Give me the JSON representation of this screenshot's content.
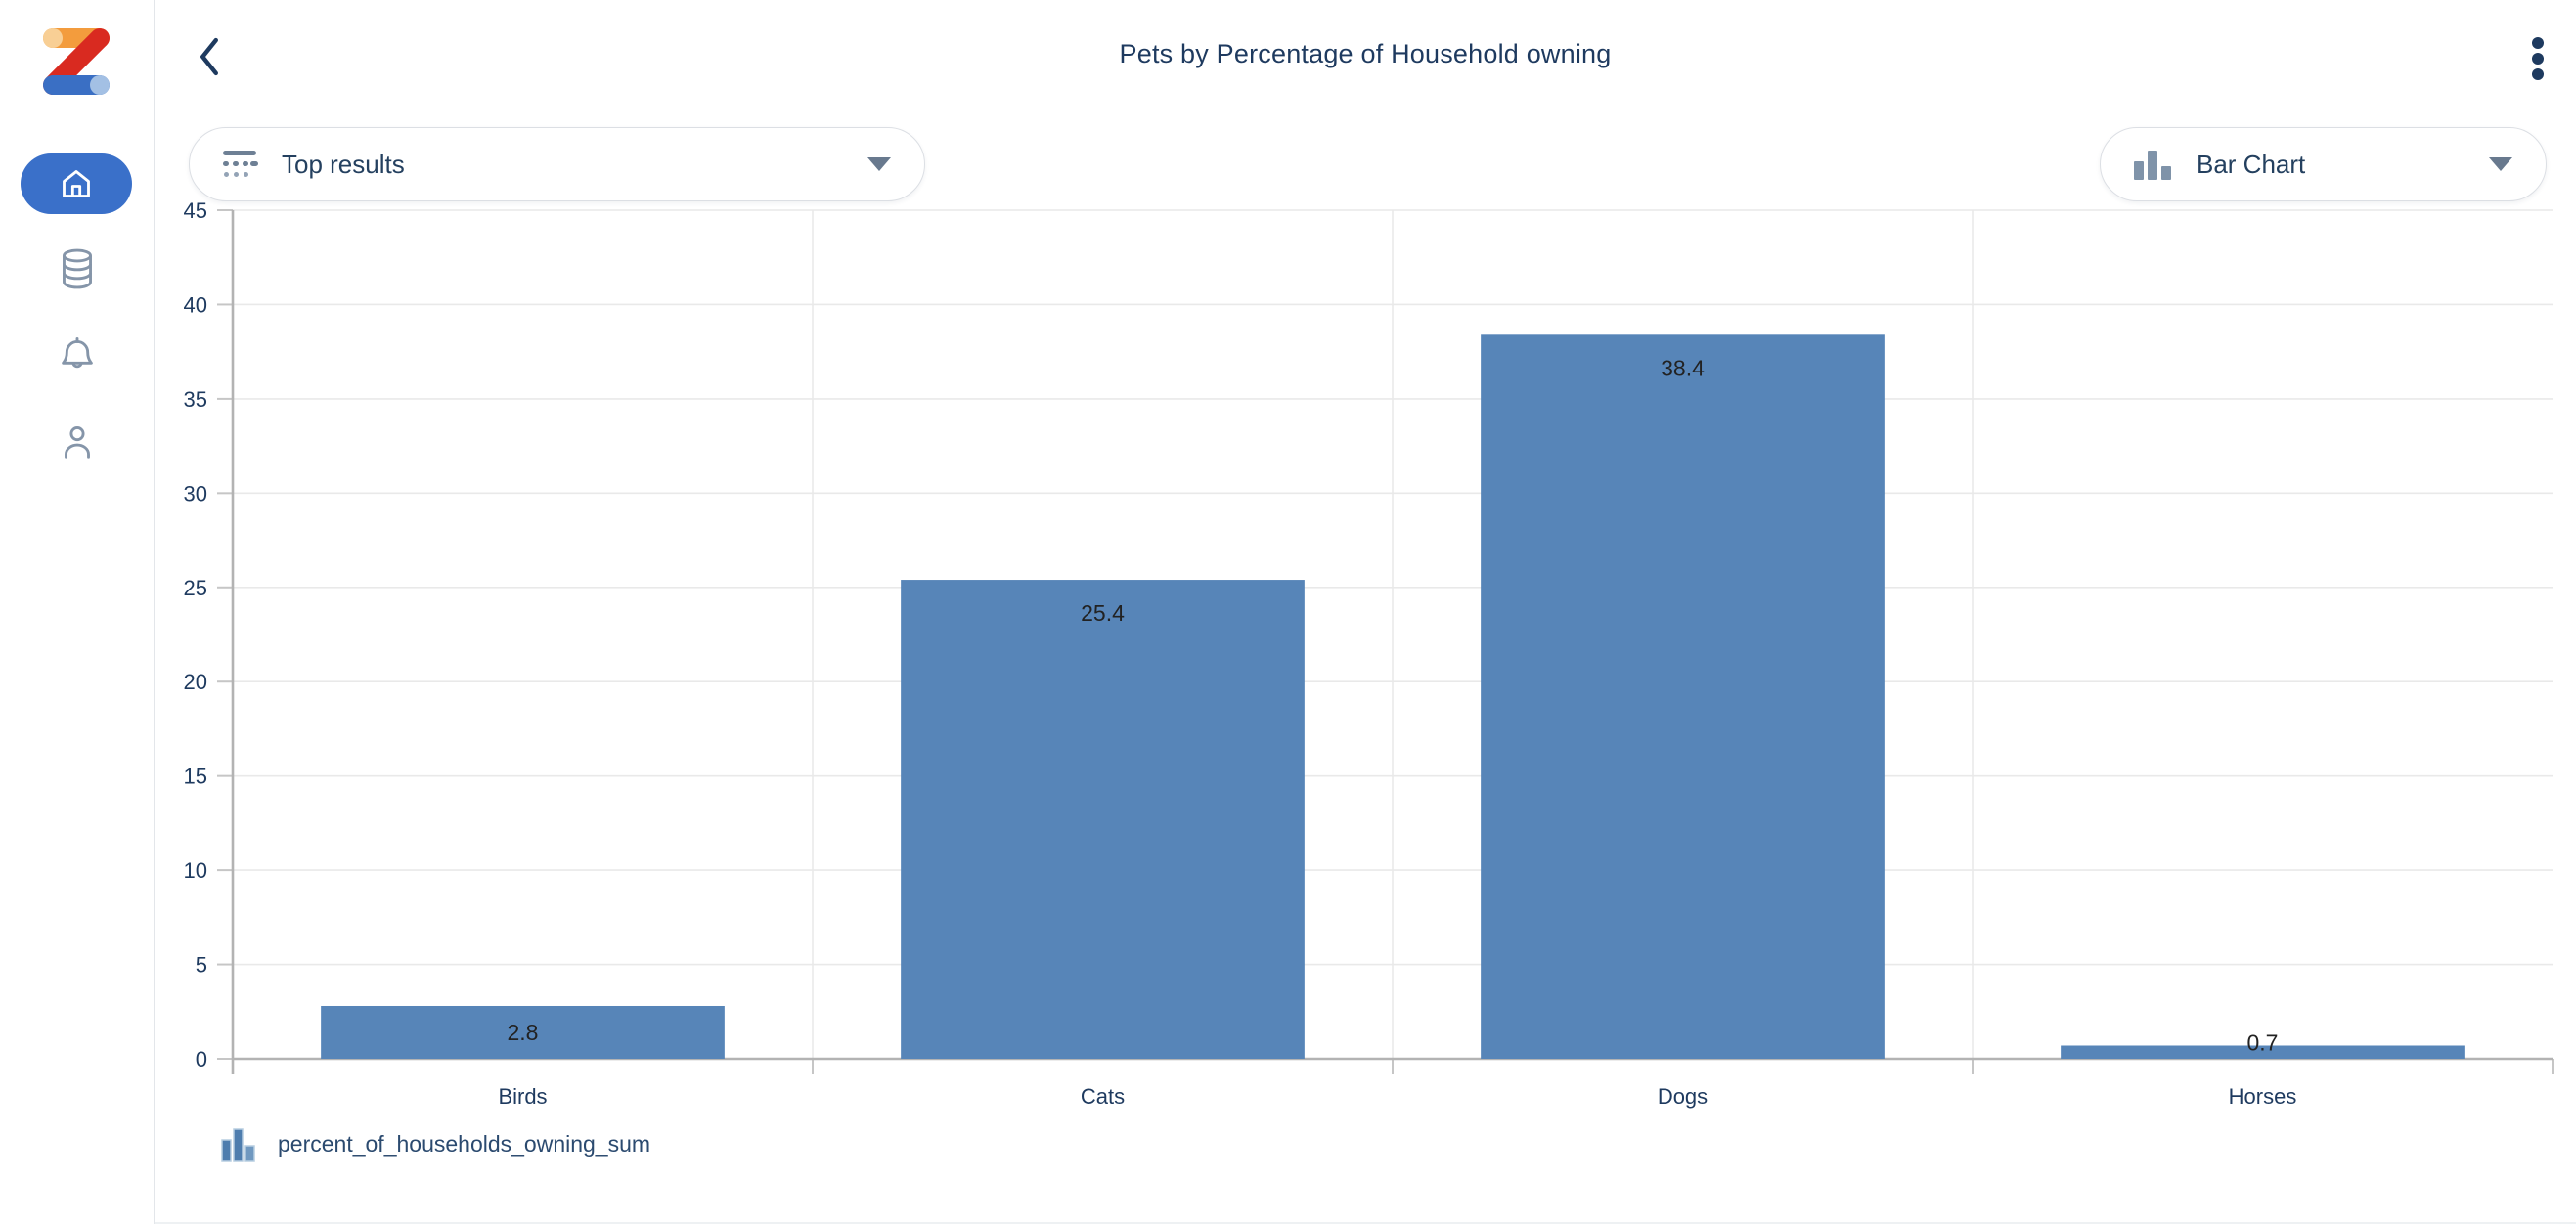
{
  "header": {
    "title": "Pets by Percentage of Household owning"
  },
  "sidebar": {
    "items": [
      {
        "id": "home",
        "icon": "home-icon",
        "active": true
      },
      {
        "id": "data",
        "icon": "database-icon",
        "active": false
      },
      {
        "id": "alerts",
        "icon": "bell-icon",
        "active": false
      },
      {
        "id": "profile",
        "icon": "user-icon",
        "active": false
      }
    ]
  },
  "filters": {
    "top_results": {
      "label": "Top results"
    },
    "chart_type": {
      "label": "Bar Chart"
    }
  },
  "legend": {
    "label": "percent_of_households_owning_sum"
  },
  "chart_data": {
    "type": "bar",
    "title": "Pets by Percentage of Household owning",
    "categories": [
      "Birds",
      "Cats",
      "Dogs",
      "Horses"
    ],
    "values": [
      2.8,
      25.4,
      38.4,
      0.7
    ],
    "series": [
      {
        "name": "percent_of_households_owning_sum",
        "values": [
          2.8,
          25.4,
          38.4,
          0.7
        ]
      }
    ],
    "xlabel": "",
    "ylabel": "",
    "ylim": [
      0,
      45
    ],
    "ytick_step": 5,
    "grid": true,
    "legend_position": "bottom-left",
    "bar_color": "#5785b8",
    "value_label_color": "#222222",
    "axis_color": "#b3b3b3",
    "grid_color": "#e9e9e9",
    "tick_color": "#c6c6c6",
    "label_color": "#1e3a5f"
  },
  "colors": {
    "accent_blue": "#3a70c9",
    "navy_text": "#1e3a5f",
    "icon_gray": "#8595a9",
    "logo_orange": "#f39c3d",
    "logo_orange_light": "#f8cf95",
    "logo_red": "#d92a20",
    "logo_blue": "#3a6fc4",
    "logo_blue_light": "#a3c0e4"
  }
}
